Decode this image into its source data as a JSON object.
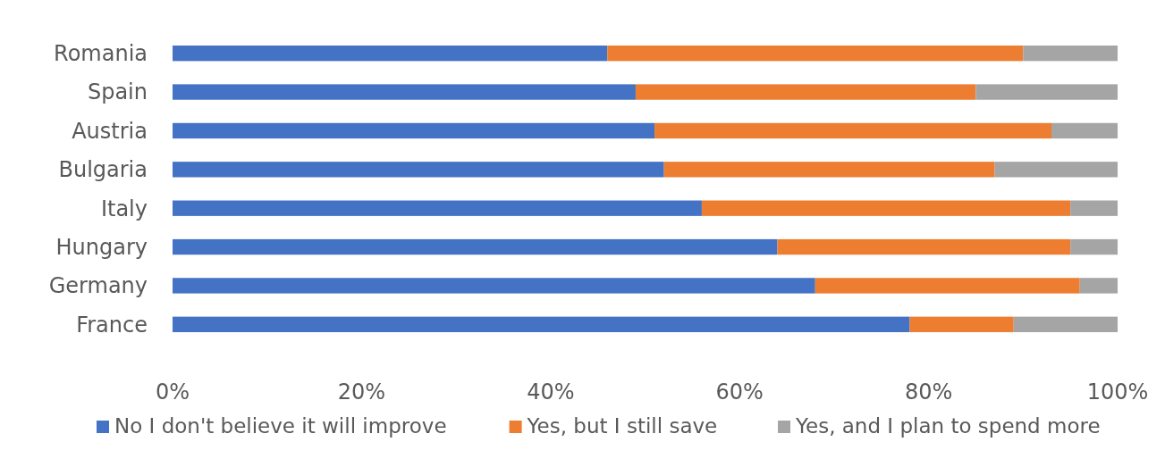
{
  "chart_data": {
    "type": "bar",
    "orientation": "horizontal",
    "stacked": true,
    "categories": [
      "Romania",
      "Spain",
      "Austria",
      "Bulgaria",
      "Italy",
      "Hungary",
      "Germany",
      "France"
    ],
    "series": [
      {
        "name": "No I don't believe it will improve",
        "color": "#4472c4",
        "values": [
          46,
          49,
          51,
          52,
          56,
          64,
          68,
          78
        ]
      },
      {
        "name": "Yes, but I still save",
        "color": "#ed7d31",
        "values": [
          44,
          36,
          42,
          35,
          39,
          31,
          28,
          11
        ]
      },
      {
        "name": "Yes, and I plan to spend more",
        "color": "#a5a5a5",
        "values": [
          10,
          15,
          7,
          13,
          5,
          5,
          4,
          11
        ]
      }
    ],
    "xlim": [
      0,
      100
    ],
    "xticks": [
      {
        "value": 0,
        "label": "0%"
      },
      {
        "value": 20,
        "label": "20%"
      },
      {
        "value": 40,
        "label": "40%"
      },
      {
        "value": 60,
        "label": "60%"
      },
      {
        "value": 80,
        "label": "80%"
      },
      {
        "value": 100,
        "label": "100%"
      }
    ],
    "grid": false,
    "legend": "bottom"
  }
}
